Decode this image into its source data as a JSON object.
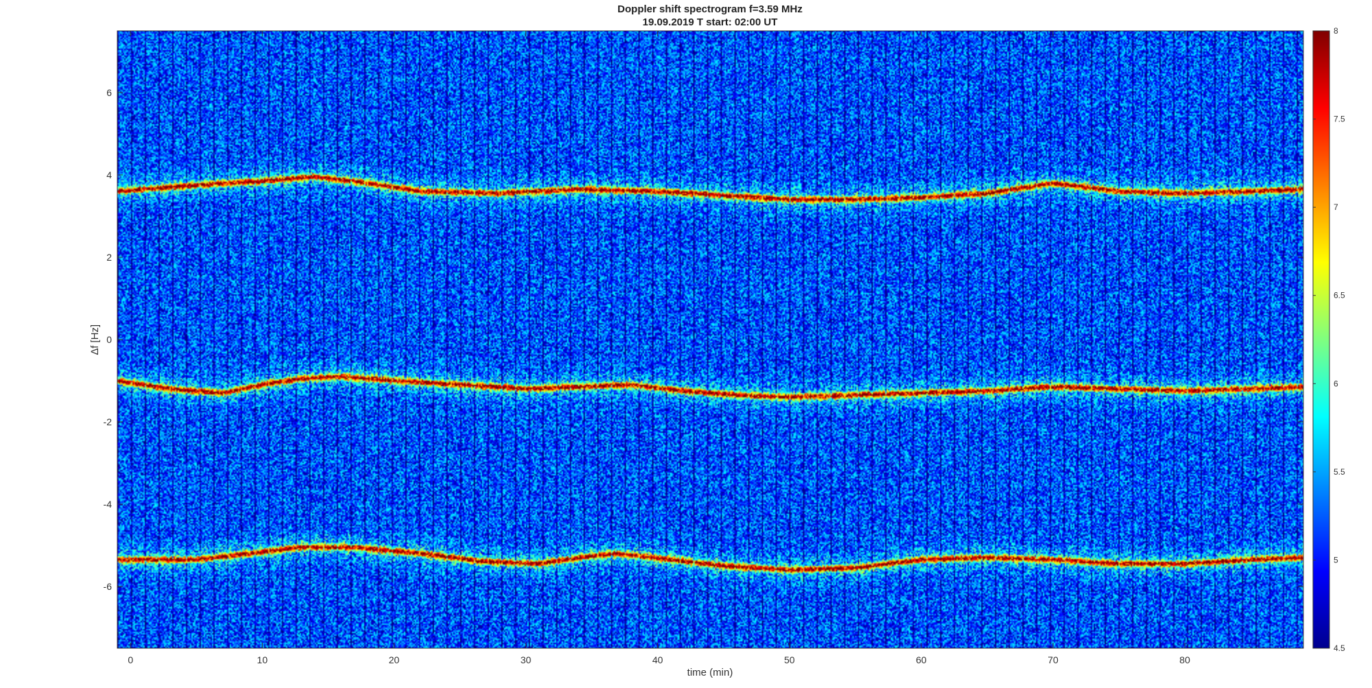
{
  "chart_data": {
    "type": "heatmap",
    "title": "Doppler shift spectrogram f=3.59 MHz",
    "subtitle": "19.09.2019   T start: 02:00 UT",
    "xlabel": "time (min)",
    "ylabel": "∆f [Hz]",
    "xlim": [
      -1,
      89
    ],
    "ylim": [
      -7.5,
      7.5
    ],
    "x_ticks": [
      0,
      10,
      20,
      30,
      40,
      50,
      60,
      70,
      80
    ],
    "y_ticks": [
      6,
      4,
      2,
      0,
      -2,
      -4,
      -6
    ],
    "colorbar": {
      "range": [
        4.5,
        8
      ],
      "ticks": [
        "8",
        "7.5",
        "7",
        "6.5",
        "6",
        "5.5",
        "5",
        "4.5"
      ],
      "colormap": "jet"
    },
    "background_level": 5.2,
    "traces": [
      {
        "peak_level": 7.8,
        "x": [
          -1,
          5,
          10,
          14,
          18,
          22,
          28,
          34,
          40,
          45,
          50,
          55,
          60,
          65,
          70,
          75,
          80,
          85,
          89
        ],
        "y": [
          3.6,
          3.75,
          3.85,
          3.95,
          3.8,
          3.6,
          3.55,
          3.65,
          3.6,
          3.5,
          3.4,
          3.4,
          3.45,
          3.55,
          3.8,
          3.6,
          3.55,
          3.6,
          3.65
        ]
      },
      {
        "peak_level": 7.8,
        "x": [
          -1,
          3,
          7,
          10,
          13,
          16,
          20,
          25,
          30,
          34,
          38,
          42,
          46,
          50,
          55,
          60,
          65,
          70,
          75,
          80,
          85,
          89
        ],
        "y": [
          -1.0,
          -1.2,
          -1.3,
          -1.1,
          -0.95,
          -0.9,
          -1.0,
          -1.1,
          -1.2,
          -1.15,
          -1.1,
          -1.25,
          -1.35,
          -1.4,
          -1.35,
          -1.3,
          -1.25,
          -1.15,
          -1.2,
          -1.25,
          -1.2,
          -1.15
        ]
      },
      {
        "peak_level": 7.8,
        "x": [
          -1,
          5,
          9,
          13,
          17,
          22,
          27,
          31,
          34,
          37,
          41,
          45,
          50,
          55,
          60,
          65,
          70,
          75,
          80,
          85,
          89
        ],
        "y": [
          -5.35,
          -5.35,
          -5.2,
          -5.05,
          -5.05,
          -5.2,
          -5.4,
          -5.45,
          -5.3,
          -5.2,
          -5.35,
          -5.5,
          -5.6,
          -5.55,
          -5.35,
          -5.3,
          -5.35,
          -5.45,
          -5.45,
          -5.35,
          -5.3
        ]
      }
    ]
  }
}
